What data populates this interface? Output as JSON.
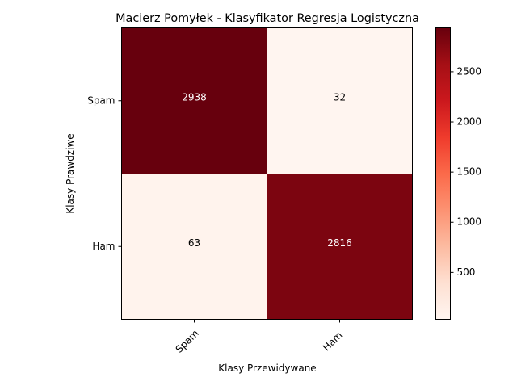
{
  "chart_data": {
    "type": "heatmap",
    "title": "Macierz Pomyłek - Klasyfikator Regresja Logistyczna",
    "xlabel": "Klasy Przewidywane",
    "ylabel": "Klasy Prawdziwe",
    "x_categories": [
      "Spam",
      "Ham"
    ],
    "y_categories": [
      "Spam",
      "Ham"
    ],
    "values": [
      [
        2938,
        32
      ],
      [
        63,
        2816
      ]
    ],
    "colormap": "Reds",
    "colorbar": {
      "min": 32,
      "max": 2938,
      "ticks": [
        500,
        1000,
        1500,
        2000,
        2500
      ]
    },
    "grid": false
  }
}
